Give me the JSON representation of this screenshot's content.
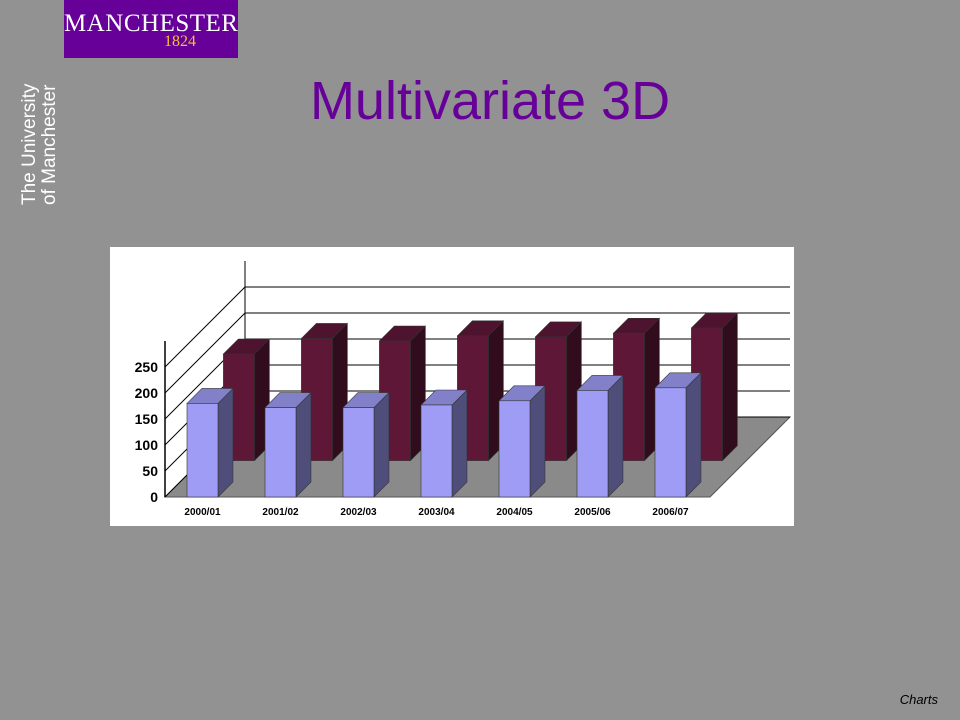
{
  "logo": {
    "wordmark": "MANCHESTER",
    "year": "1824"
  },
  "side_text": {
    "line1": "The University",
    "line2": "of Manchester"
  },
  "slide": {
    "title": "Multivariate 3D",
    "footer": "Charts"
  },
  "colors": {
    "front_series": "#9e9cf5",
    "back_series": "#5f1738",
    "title": "#660099"
  },
  "chart_data": {
    "type": "bar",
    "categories": [
      "2000/01",
      "2001/02",
      "2002/03",
      "2003/04",
      "2004/05",
      "2005/06",
      "2006/07"
    ],
    "series": [
      {
        "values": [
          180,
          172,
          172,
          177,
          185,
          205,
          210
        ]
      },
      {
        "values": [
          205,
          235,
          230,
          240,
          238,
          245,
          255
        ]
      }
    ],
    "yticks": [
      "0",
      "50",
      "100",
      "150",
      "200",
      "250"
    ],
    "ylim": [
      0,
      300
    ],
    "grid": true,
    "three_d": true
  }
}
